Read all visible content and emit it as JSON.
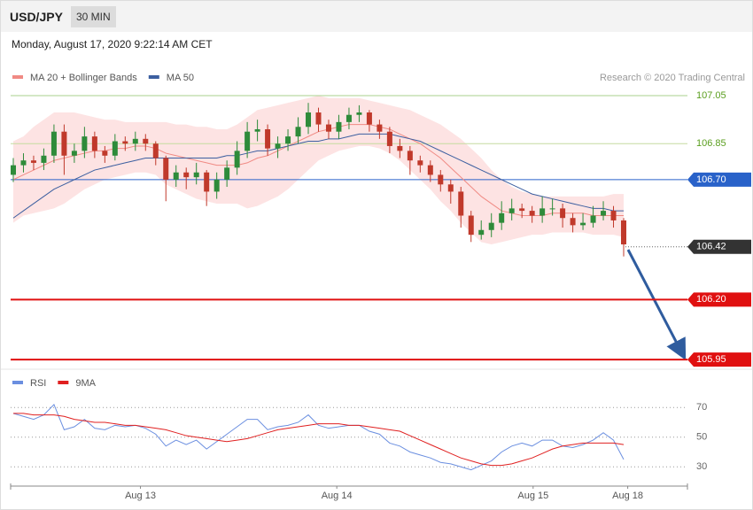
{
  "header": {
    "symbol": "USD/JPY",
    "timeframe": "30 MIN",
    "timestamp": "Monday, August 17, 2020 9:22:14 AM CET"
  },
  "chart_data": [
    {
      "type": "candlestick",
      "source": "Research © 2020 Trading Central",
      "up_color": "#2e8b3a",
      "down_color": "#c0392b",
      "xlim": [
        0,
        60
      ],
      "ylim": [
        105.91,
        107.22
      ],
      "ohlc": [
        [
          106.72,
          106.79,
          106.69,
          106.76
        ],
        [
          106.76,
          106.81,
          106.73,
          106.78
        ],
        [
          106.78,
          106.8,
          106.74,
          106.77
        ],
        [
          106.77,
          106.83,
          106.74,
          106.8
        ],
        [
          106.8,
          106.93,
          106.77,
          106.9
        ],
        [
          106.9,
          106.93,
          106.72,
          106.8
        ],
        [
          106.8,
          106.85,
          106.77,
          106.82
        ],
        [
          106.82,
          106.92,
          106.79,
          106.88
        ],
        [
          106.88,
          106.9,
          106.79,
          106.82
        ],
        [
          106.82,
          106.84,
          106.77,
          106.8
        ],
        [
          106.8,
          106.89,
          106.78,
          106.86
        ],
        [
          106.86,
          106.88,
          106.82,
          106.85
        ],
        [
          106.85,
          106.9,
          106.82,
          106.87
        ],
        [
          106.87,
          106.89,
          106.82,
          106.85
        ],
        [
          106.85,
          106.86,
          106.76,
          106.79
        ],
        [
          106.79,
          106.8,
          106.61,
          106.7
        ],
        [
          106.7,
          106.76,
          106.67,
          106.73
        ],
        [
          106.73,
          106.75,
          106.66,
          106.71
        ],
        [
          106.71,
          106.77,
          106.68,
          106.73
        ],
        [
          106.73,
          106.74,
          106.59,
          106.65
        ],
        [
          106.65,
          106.73,
          106.62,
          106.7
        ],
        [
          106.7,
          106.78,
          106.67,
          106.75
        ],
        [
          106.75,
          106.86,
          106.72,
          106.82
        ],
        [
          106.82,
          106.94,
          106.79,
          106.9
        ],
        [
          106.9,
          106.95,
          106.86,
          106.91
        ],
        [
          106.91,
          106.93,
          106.8,
          106.83
        ],
        [
          106.83,
          106.88,
          106.79,
          106.85
        ],
        [
          106.85,
          106.91,
          106.82,
          106.88
        ],
        [
          106.88,
          106.96,
          106.85,
          106.92
        ],
        [
          106.92,
          107.02,
          106.89,
          106.98
        ],
        [
          106.98,
          107.0,
          106.9,
          106.93
        ],
        [
          106.93,
          106.95,
          106.87,
          106.9
        ],
        [
          106.9,
          106.97,
          106.87,
          106.94
        ],
        [
          106.94,
          107.0,
          106.91,
          106.97
        ],
        [
          106.97,
          107.01,
          106.94,
          106.98
        ],
        [
          106.98,
          106.99,
          106.9,
          106.93
        ],
        [
          106.93,
          106.95,
          106.87,
          106.9
        ],
        [
          106.9,
          106.92,
          106.81,
          106.84
        ],
        [
          106.84,
          106.87,
          106.79,
          106.82
        ],
        [
          106.82,
          106.84,
          106.72,
          106.78
        ],
        [
          106.78,
          106.8,
          106.73,
          106.76
        ],
        [
          106.76,
          106.78,
          106.69,
          106.72
        ],
        [
          106.72,
          106.74,
          106.65,
          106.68
        ],
        [
          106.68,
          106.7,
          106.6,
          106.65
        ],
        [
          106.65,
          106.67,
          106.5,
          106.55
        ],
        [
          106.55,
          106.57,
          106.44,
          106.47
        ],
        [
          106.47,
          106.53,
          106.45,
          106.49
        ],
        [
          106.49,
          106.56,
          106.46,
          106.52
        ],
        [
          106.52,
          106.61,
          106.49,
          106.56
        ],
        [
          106.56,
          106.62,
          106.53,
          106.58
        ],
        [
          106.58,
          106.6,
          106.54,
          106.57
        ],
        [
          106.57,
          106.59,
          106.52,
          106.55
        ],
        [
          106.55,
          106.63,
          106.52,
          106.58
        ],
        [
          106.58,
          106.62,
          106.55,
          106.58
        ],
        [
          106.58,
          106.6,
          106.5,
          106.54
        ],
        [
          106.54,
          106.56,
          106.48,
          106.51
        ],
        [
          106.51,
          106.56,
          106.49,
          106.52
        ],
        [
          106.52,
          106.59,
          106.5,
          106.55
        ],
        [
          106.55,
          106.61,
          106.53,
          106.57
        ],
        [
          106.57,
          106.59,
          106.5,
          106.53
        ],
        [
          106.53,
          106.54,
          106.38,
          106.43
        ]
      ],
      "series": [
        {
          "name": "MA 20 + Bollinger Bands",
          "color": "#f08a84",
          "band_color": "#fde3e3",
          "values": [
            106.7,
            106.72,
            106.74,
            106.76,
            106.78,
            106.79,
            106.8,
            106.81,
            106.82,
            106.82,
            106.83,
            106.83,
            106.84,
            106.84,
            106.83,
            106.81,
            106.8,
            106.79,
            106.78,
            106.77,
            106.76,
            106.76,
            106.76,
            106.77,
            106.79,
            106.8,
            106.82,
            106.84,
            106.86,
            106.88,
            106.9,
            106.91,
            106.92,
            106.93,
            106.93,
            106.93,
            106.92,
            106.91,
            106.89,
            106.87,
            106.85,
            106.82,
            106.79,
            106.75,
            106.71,
            106.67,
            106.63,
            106.6,
            106.57,
            106.56,
            106.55,
            106.55,
            106.55,
            106.56,
            106.56,
            106.56,
            106.56,
            106.55,
            106.55,
            106.55,
            106.55
          ],
          "upper": [
            106.86,
            106.88,
            106.92,
            106.95,
            106.98,
            106.98,
            106.98,
            106.97,
            106.96,
            106.95,
            106.95,
            106.94,
            106.94,
            106.94,
            106.94,
            106.94,
            106.93,
            106.93,
            106.92,
            106.92,
            106.91,
            106.91,
            106.93,
            106.96,
            106.99,
            107.0,
            107.01,
            107.02,
            107.03,
            107.04,
            107.05,
            107.04,
            107.04,
            107.04,
            107.04,
            107.03,
            107.02,
            107.01,
            107.0,
            106.99,
            106.97,
            106.95,
            106.93,
            106.9,
            106.87,
            106.83,
            106.79,
            106.74,
            106.7,
            106.67,
            106.65,
            106.64,
            106.63,
            106.63,
            106.63,
            106.63,
            106.63,
            106.63,
            106.63,
            106.64,
            106.64
          ],
          "lower": [
            106.52,
            106.55,
            106.56,
            106.57,
            106.58,
            106.6,
            106.63,
            106.66,
            106.68,
            106.7,
            106.71,
            106.72,
            106.73,
            106.73,
            106.72,
            106.68,
            106.66,
            106.64,
            106.62,
            106.61,
            106.6,
            106.6,
            106.6,
            106.58,
            106.59,
            106.61,
            106.63,
            106.66,
            106.7,
            106.74,
            106.78,
            106.8,
            106.82,
            106.83,
            106.84,
            106.84,
            106.83,
            106.81,
            106.78,
            106.74,
            106.7,
            106.66,
            106.61,
            106.57,
            106.52,
            106.48,
            106.44,
            106.43,
            106.44,
            106.45,
            106.46,
            106.47,
            106.47,
            106.48,
            106.48,
            106.48,
            106.48,
            106.47,
            106.47,
            106.47,
            106.46
          ]
        },
        {
          "name": "MA 50",
          "color": "#3c5fa0",
          "values": [
            106.54,
            106.57,
            106.6,
            106.63,
            106.66,
            106.68,
            106.7,
            106.72,
            106.74,
            106.75,
            106.76,
            106.77,
            106.78,
            106.79,
            106.79,
            106.79,
            106.79,
            106.79,
            106.79,
            106.79,
            106.79,
            106.8,
            106.8,
            106.81,
            106.82,
            106.82,
            106.83,
            106.84,
            106.85,
            106.86,
            106.86,
            106.87,
            106.87,
            106.88,
            106.89,
            106.89,
            106.89,
            106.89,
            106.88,
            106.87,
            106.86,
            106.84,
            106.82,
            106.8,
            106.78,
            106.76,
            106.74,
            106.72,
            106.7,
            106.68,
            106.66,
            106.64,
            106.63,
            106.62,
            106.61,
            106.6,
            106.59,
            106.58,
            106.58,
            106.57,
            106.57
          ]
        }
      ],
      "levels": [
        {
          "value": 107.05,
          "label": "107.05",
          "color": "#a9d18e",
          "text_color": "#5a9e1e",
          "style": "text"
        },
        {
          "value": 106.85,
          "label": "106.85",
          "color": "#c5dca0",
          "text_color": "#5a9e1e",
          "style": "text"
        },
        {
          "value": 106.7,
          "label": "106.70",
          "color": "#2962c9",
          "text_color": "#ffffff",
          "style": "box"
        },
        {
          "value": 106.42,
          "label": "106.42",
          "color": "#333333",
          "text_color": "#ffffff",
          "style": "dotted-box"
        },
        {
          "value": 106.2,
          "label": "106.20",
          "color": "#e01010",
          "text_color": "#ffffff",
          "style": "thick-box"
        },
        {
          "value": 105.95,
          "label": "105.95",
          "color": "#e01010",
          "text_color": "#ffffff",
          "style": "thick-box"
        }
      ]
    },
    {
      "type": "line",
      "xlim": [
        0,
        60
      ],
      "ylim": [
        20,
        94
      ],
      "yticks": [
        70,
        50,
        30
      ],
      "xticks": [
        {
          "value": 12.5,
          "label": "Aug 13"
        },
        {
          "value": 31.8,
          "label": "Aug 14"
        },
        {
          "value": 51.1,
          "label": "Aug 15"
        },
        {
          "value": 60.4,
          "label": "Aug 18"
        }
      ],
      "series": [
        {
          "name": "RSI",
          "color": "#6b8fe0",
          "values": [
            66,
            64,
            62,
            65,
            72,
            55,
            57,
            62,
            56,
            55,
            58,
            57,
            58,
            56,
            52,
            44,
            48,
            45,
            48,
            42,
            47,
            52,
            57,
            62,
            62,
            55,
            57,
            58,
            60,
            65,
            58,
            56,
            57,
            58,
            58,
            54,
            52,
            46,
            44,
            40,
            38,
            36,
            33,
            32,
            30,
            28,
            31,
            34,
            40,
            44,
            46,
            44,
            48,
            48,
            44,
            43,
            45,
            48,
            53,
            48,
            35
          ]
        },
        {
          "name": "9MA",
          "color": "#e02020",
          "values": [
            66,
            66,
            65,
            65,
            65,
            64,
            62,
            61,
            60,
            60,
            59,
            58,
            58,
            57,
            56,
            55,
            53,
            51,
            50,
            49,
            48,
            47,
            48,
            49,
            51,
            53,
            55,
            56,
            57,
            58,
            59,
            59,
            59,
            58,
            58,
            57,
            56,
            55,
            54,
            51,
            48,
            45,
            42,
            39,
            36,
            34,
            32,
            31,
            31,
            32,
            34,
            36,
            39,
            42,
            44,
            45,
            46,
            46,
            46,
            46,
            45
          ]
        }
      ]
    }
  ]
}
